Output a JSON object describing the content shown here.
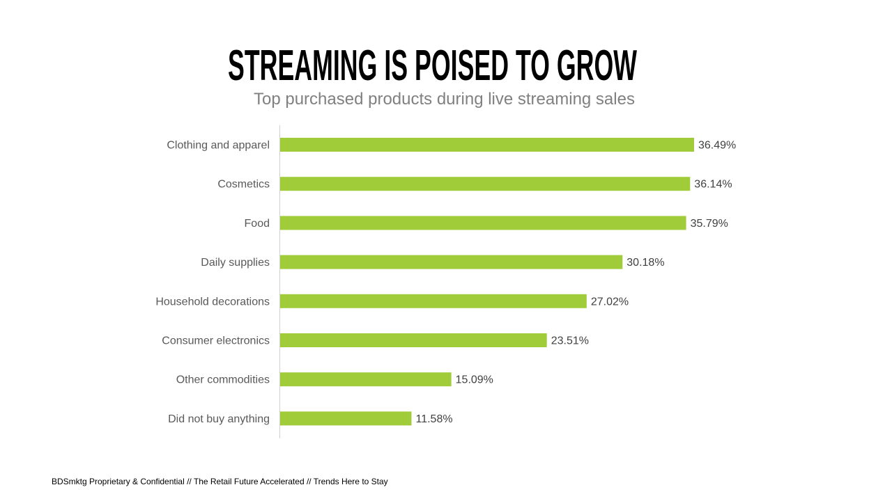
{
  "title": "STREAMING IS POISED TO GROW",
  "subtitle": "Top purchased products during live streaming sales",
  "footer": "BDSmktg Proprietary & Confidential // The Retail Future Accelerated  // Trends Here to Stay",
  "chart_data": {
    "type": "bar",
    "orientation": "horizontal",
    "title": "STREAMING IS POISED TO GROW",
    "subtitle": "Top purchased products during live streaming sales",
    "categories": [
      "Clothing and apparel",
      "Cosmetics",
      "Food",
      "Daily supplies",
      "Household decorations",
      "Consumer electronics",
      "Other commodities",
      "Did not buy anything"
    ],
    "values": [
      36.49,
      36.14,
      35.79,
      30.18,
      27.02,
      23.51,
      15.09,
      11.58
    ],
    "data_labels": [
      "36.49%",
      "36.14%",
      "35.79%",
      "30.18%",
      "27.02%",
      "23.51%",
      "15.09%",
      "11.58%"
    ],
    "xlim": [
      0,
      40
    ],
    "grid": false,
    "legend": "none",
    "bar_color": "#a0cc3a"
  }
}
